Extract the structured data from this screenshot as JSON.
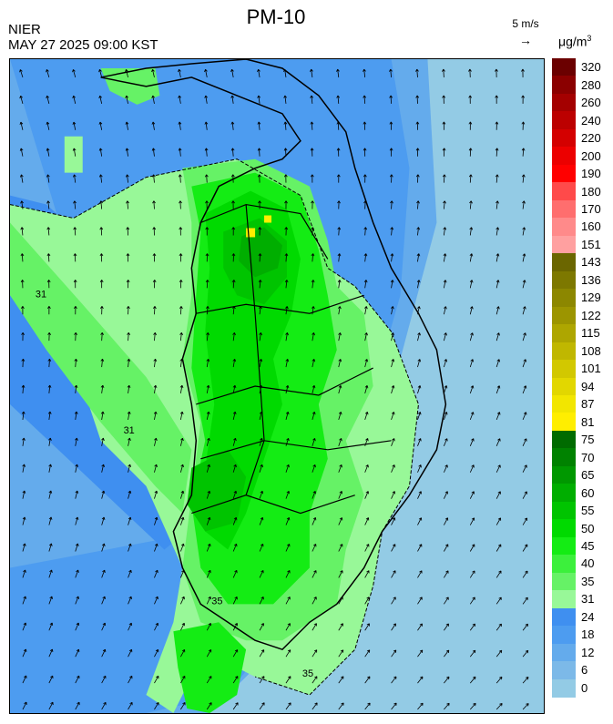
{
  "header": {
    "title": "PM-10",
    "agency": "NIER",
    "timestamp": "MAY 27 2025 09:00 KST",
    "wind_reference": "5 m/s",
    "wind_arrow": "→",
    "unit_base": "μg/m",
    "unit_exp": "3"
  },
  "legend": {
    "labels": [
      "320",
      "280",
      "260",
      "240",
      "220",
      "200",
      "190",
      "180",
      "170",
      "160",
      "151",
      "143",
      "136",
      "129",
      "122",
      "115",
      "108",
      "101",
      "94",
      "87",
      "81",
      "75",
      "70",
      "65",
      "60",
      "55",
      "50",
      "45",
      "40",
      "35",
      "31",
      "24",
      "18",
      "12",
      "6",
      "0"
    ],
    "colors": [
      "#6b0000",
      "#8b0000",
      "#a40000",
      "#bc0000",
      "#d40000",
      "#ec0000",
      "#ff0000",
      "#ff4a4a",
      "#ff6e6e",
      "#ff8a8a",
      "#ffa0a0",
      "#6b6600",
      "#7d7800",
      "#8c8700",
      "#9c9500",
      "#aea600",
      "#c0b700",
      "#d2c800",
      "#e2d700",
      "#f2e600",
      "#ffee00",
      "#006b00",
      "#008200",
      "#009800",
      "#00ae00",
      "#00c400",
      "#00da00",
      "#14ec14",
      "#3cf03c",
      "#66f266",
      "#98f898",
      "#3f8ff0",
      "#4d9cf0",
      "#64abec",
      "#7cb9e8",
      "#93cbe5"
    ]
  },
  "map": {
    "colors": {
      "far_sea": "#93cbe5",
      "sea": "#64abec",
      "near_sea": "#4d9cf0",
      "coast_band": "#3f8ff0",
      "low_land": "#98f898",
      "land_35": "#66f266",
      "land_45": "#14ec14",
      "land_50": "#00da00",
      "land_55": "#00c400",
      "land_60": "#00ae00",
      "hotspot": "#ffee00",
      "boundary": "#000000"
    },
    "contour_labels": [
      "31",
      "31",
      "35",
      "35"
    ]
  }
}
